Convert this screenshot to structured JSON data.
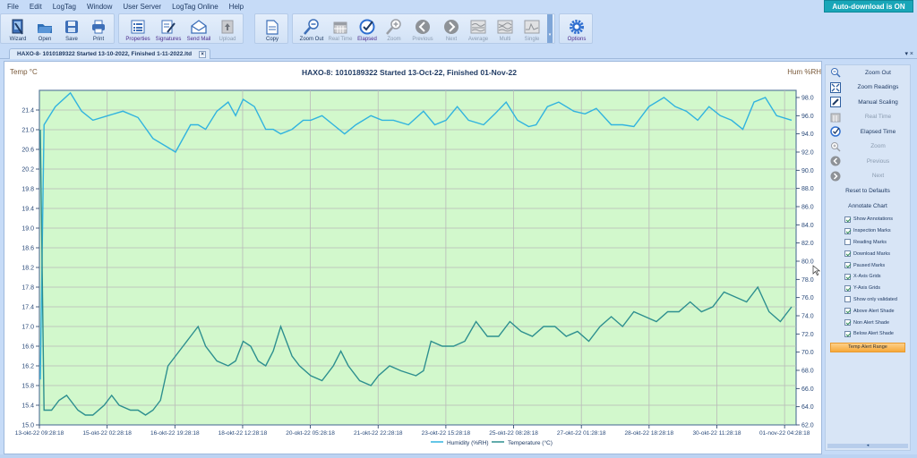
{
  "menu": [
    "File",
    "Edit",
    "LogTag",
    "Window",
    "User Server",
    "LogTag Online",
    "Help"
  ],
  "status_badge": "Auto-download is ON",
  "toolbar": {
    "group1": [
      {
        "label": "Wizard",
        "icon": "wizard-icon"
      },
      {
        "label": "Open",
        "icon": "open-folder-icon"
      },
      {
        "label": "Save",
        "icon": "save-icon"
      },
      {
        "label": "Print",
        "icon": "print-icon"
      }
    ],
    "group2": [
      {
        "label": "Properties",
        "icon": "properties-icon"
      },
      {
        "label": "Signatures",
        "icon": "signatures-icon"
      },
      {
        "label": "Send Mail",
        "icon": "mail-icon"
      },
      {
        "label": "Upload",
        "icon": "upload-icon",
        "disabled": true
      }
    ],
    "group3": [
      {
        "label": "Copy",
        "icon": "copy-icon"
      }
    ],
    "group4": [
      {
        "label": "Zoom Out",
        "icon": "zoom-out-icon"
      },
      {
        "label": "Real Time",
        "icon": "calendar-icon",
        "disabled": true
      },
      {
        "label": "Elapsed",
        "icon": "elapsed-clock-icon"
      },
      {
        "label": "Zoom",
        "icon": "zoom-in-icon",
        "disabled": true
      },
      {
        "label": "Previous",
        "icon": "previous-icon",
        "disabled": true
      },
      {
        "label": "Next",
        "icon": "next-icon",
        "disabled": true
      },
      {
        "label": "Average",
        "icon": "average-chart-icon",
        "disabled": true
      },
      {
        "label": "Multi",
        "icon": "multi-chart-icon",
        "disabled": true
      },
      {
        "label": "Single",
        "icon": "single-chart-icon",
        "disabled": true
      }
    ],
    "group5": [
      {
        "label": "Options",
        "icon": "gear-icon"
      }
    ]
  },
  "document_tab": {
    "label": "HAXO-8- 1010189322 Started  13-10-2022, Finished  1-11-2022.ltd",
    "close": "×"
  },
  "tab_controls": "▾ ×",
  "chart": {
    "title": "HAXO-8: 1010189322 Started 13-Oct-22, Finished 01-Nov-22",
    "left_axis_label": "Temp °C",
    "right_axis_label": "Hum %RH"
  },
  "side_panel": {
    "items": [
      {
        "label": "Zoom Out",
        "icon": "zoom-out-icon"
      },
      {
        "label": "Zoom Readings",
        "icon": "zoom-readings-icon"
      },
      {
        "label": "Manual Scaling",
        "icon": "manual-scaling-icon"
      },
      {
        "label": "Real Time",
        "icon": "calendar-icon",
        "disabled": true
      },
      {
        "label": "Elapsed Time",
        "icon": "elapsed-clock-icon"
      },
      {
        "label": "Zoom",
        "icon": "zoom-in-icon",
        "disabled": true
      },
      {
        "label": "Previous",
        "icon": "previous-icon",
        "disabled": true
      },
      {
        "label": "Next",
        "icon": "next-icon",
        "disabled": true
      }
    ],
    "reset_label": "Reset to Defaults",
    "annotate_label": "Annotate Chart",
    "checkboxes": [
      {
        "label": "Show Annotations",
        "checked": true
      },
      {
        "label": "Inspection Marks",
        "checked": true
      },
      {
        "label": "Reading Marks",
        "checked": false
      },
      {
        "label": "Download Marks",
        "checked": true
      },
      {
        "label": "Paused Marks",
        "checked": true
      },
      {
        "label": "X-Axis Grids",
        "checked": true
      },
      {
        "label": "Y-Axis Grids",
        "checked": true
      },
      {
        "label": "Show only validated",
        "checked": false
      },
      {
        "label": "Above Alert Shade",
        "checked": true
      },
      {
        "label": "Non Alert Shade",
        "checked": true
      },
      {
        "label": "Below Alert Shade",
        "checked": true
      }
    ],
    "alert_button": "Temp Alert Range",
    "scroll_glyph": "◂"
  },
  "colors": {
    "plot_bg": "#d2f8cc",
    "humidity_line": "#31b3df",
    "temperature_line": "#2d8f8f",
    "badge": "#19a6b8",
    "alert_button": "#f7a93a"
  },
  "chart_data": {
    "type": "line",
    "title": "HAXO-8: 1010189322 Started 13-Oct-22, Finished 01-Nov-22",
    "xlabel": "",
    "ylabel": "Temp °C",
    "y2label": "Hum %RH",
    "ylim": [
      15.0,
      21.8
    ],
    "y2lim": [
      62.0,
      98.0
    ],
    "grid": true,
    "legend_position": "bottom",
    "x_ticks": [
      "13-okt-22 09:28:18",
      "15-okt-22 02:28:18",
      "16-okt-22 19:28:18",
      "18-okt-22 12:28:18",
      "20-okt-22 05:28:18",
      "21-okt-22 22:28:18",
      "23-okt-22 15:28:18",
      "25-okt-22 08:28:18",
      "27-okt-22 01:28:18",
      "28-okt-22 18:28:18",
      "30-okt-22 11:28:18",
      "01-nov-22 04:28:18"
    ],
    "y_ticks": [
      "15.0",
      "15.4",
      "15.8",
      "16.2",
      "16.6",
      "17.0",
      "17.4",
      "17.8",
      "18.2",
      "18.6",
      "19.0",
      "19.4",
      "19.8",
      "20.2",
      "20.6",
      "21.0",
      "21.4"
    ],
    "y2_ticks": [
      "62.0",
      "64.0",
      "66.0",
      "68.0",
      "70.0",
      "72.0",
      "74.0",
      "76.0",
      "78.0",
      "80.0",
      "82.0",
      "84.0",
      "86.0",
      "88.0",
      "90.0",
      "92.0",
      "94.0",
      "96.0",
      "98.0"
    ],
    "series": [
      {
        "name": "Humidity (%RH)",
        "axis": "right",
        "x_fraction": [
          0,
          0.005,
          0.02,
          0.04,
          0.055,
          0.07,
          0.09,
          0.11,
          0.13,
          0.15,
          0.17,
          0.18,
          0.2,
          0.21,
          0.22,
          0.235,
          0.25,
          0.26,
          0.27,
          0.285,
          0.3,
          0.31,
          0.32,
          0.335,
          0.35,
          0.36,
          0.375,
          0.39,
          0.405,
          0.42,
          0.44,
          0.455,
          0.47,
          0.49,
          0.51,
          0.525,
          0.54,
          0.555,
          0.57,
          0.59,
          0.605,
          0.62,
          0.635,
          0.65,
          0.66,
          0.675,
          0.69,
          0.71,
          0.725,
          0.74,
          0.76,
          0.775,
          0.79,
          0.81,
          0.83,
          0.845,
          0.86,
          0.875,
          0.89,
          0.905,
          0.92,
          0.935,
          0.95,
          0.965,
          0.98,
          1.0
        ],
        "values": [
          67.0,
          95.0,
          97.0,
          98.5,
          96.5,
          95.5,
          96.0,
          96.5,
          95.8,
          93.5,
          92.5,
          92.0,
          95.0,
          95.0,
          94.5,
          96.5,
          97.5,
          96.0,
          97.8,
          97.0,
          94.5,
          94.5,
          94.0,
          94.5,
          95.5,
          95.5,
          96.0,
          95.0,
          94.0,
          95.0,
          96.0,
          95.5,
          95.5,
          95.0,
          96.5,
          95.0,
          95.5,
          97.0,
          95.5,
          95.0,
          96.2,
          97.5,
          95.5,
          94.8,
          95.0,
          97.0,
          97.5,
          96.5,
          96.2,
          96.8,
          95.0,
          95.0,
          94.8,
          97.0,
          98.0,
          97.0,
          96.5,
          95.5,
          97.0,
          96.0,
          95.5,
          94.5,
          97.5,
          98.0,
          96.0,
          95.5
        ]
      },
      {
        "name": "Temperature (°C)",
        "axis": "left",
        "x_fraction": [
          0,
          0.005,
          0.015,
          0.025,
          0.035,
          0.05,
          0.06,
          0.07,
          0.085,
          0.095,
          0.105,
          0.12,
          0.13,
          0.14,
          0.15,
          0.16,
          0.17,
          0.18,
          0.19,
          0.2,
          0.21,
          0.22,
          0.235,
          0.25,
          0.26,
          0.27,
          0.28,
          0.29,
          0.3,
          0.31,
          0.32,
          0.335,
          0.345,
          0.36,
          0.375,
          0.39,
          0.4,
          0.41,
          0.425,
          0.44,
          0.45,
          0.465,
          0.48,
          0.5,
          0.51,
          0.52,
          0.535,
          0.55,
          0.565,
          0.58,
          0.595,
          0.61,
          0.625,
          0.64,
          0.655,
          0.67,
          0.685,
          0.7,
          0.715,
          0.73,
          0.745,
          0.76,
          0.775,
          0.79,
          0.805,
          0.82,
          0.835,
          0.85,
          0.865,
          0.88,
          0.895,
          0.91,
          0.925,
          0.94,
          0.955,
          0.97,
          0.985,
          1.0
        ],
        "values": [
          21.0,
          15.3,
          15.3,
          15.5,
          15.6,
          15.3,
          15.2,
          15.2,
          15.4,
          15.6,
          15.4,
          15.3,
          15.3,
          15.2,
          15.3,
          15.5,
          16.2,
          16.4,
          16.6,
          16.8,
          17.0,
          16.6,
          16.3,
          16.2,
          16.3,
          16.7,
          16.6,
          16.3,
          16.2,
          16.5,
          17.0,
          16.4,
          16.2,
          16.0,
          15.9,
          16.2,
          16.5,
          16.2,
          15.9,
          15.8,
          16.0,
          16.2,
          16.1,
          16.0,
          16.1,
          16.7,
          16.6,
          16.6,
          16.7,
          17.1,
          16.8,
          16.8,
          17.1,
          16.9,
          16.8,
          17.0,
          17.0,
          16.8,
          16.9,
          16.7,
          17.0,
          17.2,
          17.0,
          17.3,
          17.2,
          17.1,
          17.3,
          17.3,
          17.5,
          17.3,
          17.4,
          17.7,
          17.6,
          17.5,
          17.8,
          17.3,
          17.1,
          17.4
        ]
      }
    ]
  }
}
